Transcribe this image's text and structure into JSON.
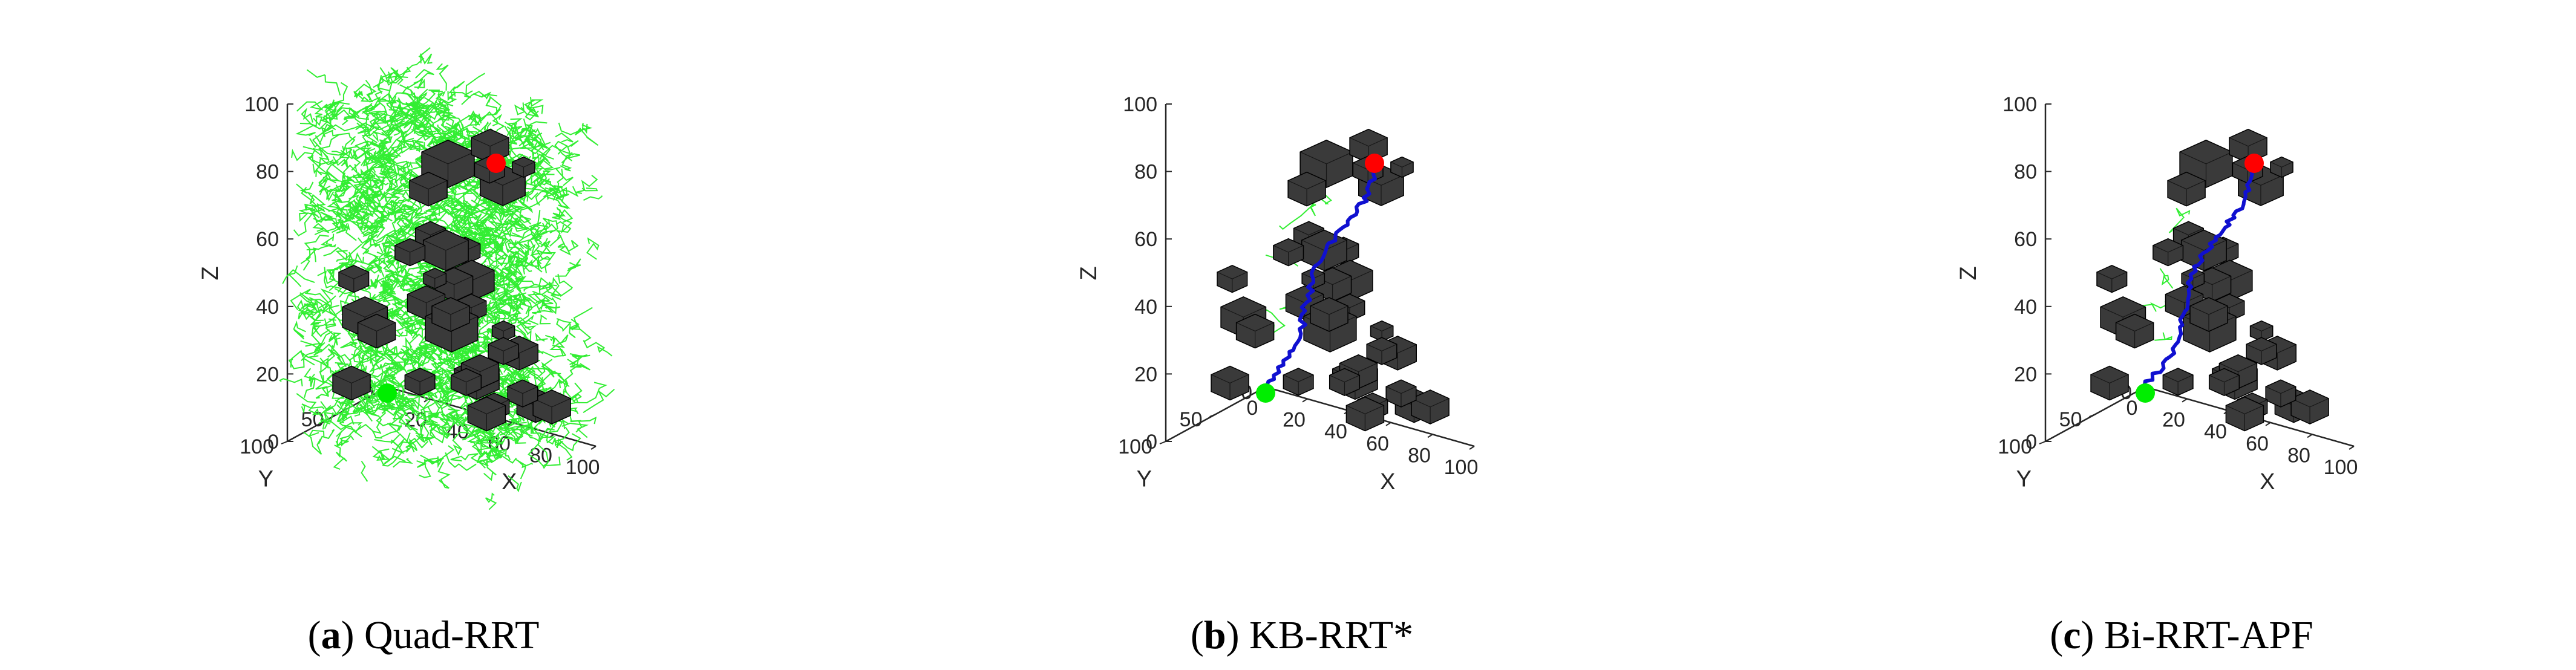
{
  "chart_data": [
    {
      "type": "scatter",
      "panel_letter": "a",
      "caption_text": "Quad-RRT",
      "xlabel": "X",
      "ylabel": "Y",
      "zlabel": "Z",
      "xlim": [
        0,
        100
      ],
      "ylim": [
        0,
        100
      ],
      "zlim": [
        0,
        100
      ],
      "xticks": [
        "20",
        "40",
        "60",
        "80",
        "100"
      ],
      "yticks": [
        "0",
        "50",
        "100"
      ],
      "zticks": [
        "0",
        "20",
        "40",
        "60",
        "80",
        "100"
      ],
      "start": {
        "x": 0,
        "y": 0,
        "z": 0,
        "color": "#00ee00"
      },
      "goal": {
        "x": 100,
        "y": 100,
        "z": 100,
        "color": "#ff0000"
      },
      "tree": {
        "color": "#33ee33",
        "density": "dense"
      },
      "path": null
    },
    {
      "type": "line",
      "panel_letter": "b",
      "caption_text": "KB-RRT*",
      "xlabel": "X",
      "ylabel": "Y",
      "zlabel": "Z",
      "xlim": [
        0,
        100
      ],
      "ylim": [
        0,
        100
      ],
      "zlim": [
        0,
        100
      ],
      "xticks": [
        "0",
        "20",
        "40",
        "60",
        "80",
        "100"
      ],
      "yticks": [
        "0",
        "50",
        "100"
      ],
      "zticks": [
        "0",
        "20",
        "40",
        "60",
        "80",
        "100"
      ],
      "start": {
        "x": 0,
        "y": 0,
        "z": 0,
        "color": "#00ee00"
      },
      "goal": {
        "x": 100,
        "y": 100,
        "z": 100,
        "color": "#ff0000"
      },
      "tree": {
        "color": "#33ee33",
        "density": "sparse"
      },
      "path": {
        "color": "#1010d0"
      }
    },
    {
      "type": "line",
      "panel_letter": "c",
      "caption_text": "Bi-RRT-APF",
      "xlabel": "X",
      "ylabel": "Y",
      "zlabel": "Z",
      "xlim": [
        0,
        100
      ],
      "ylim": [
        0,
        100
      ],
      "zlim": [
        0,
        100
      ],
      "xticks": [
        "0",
        "20",
        "40",
        "60",
        "80",
        "100"
      ],
      "yticks": [
        "0",
        "50",
        "100"
      ],
      "zticks": [
        "0",
        "20",
        "40",
        "60",
        "80",
        "100"
      ],
      "start": {
        "x": 0,
        "y": 0,
        "z": 0,
        "color": "#00ee00"
      },
      "goal": {
        "x": 100,
        "y": 100,
        "z": 100,
        "color": "#ff0000"
      },
      "tree": {
        "color": "#33ee33",
        "density": "sparse"
      },
      "path": {
        "color": "#1010d0"
      }
    }
  ],
  "obstacle_color": "#3a3a3a"
}
